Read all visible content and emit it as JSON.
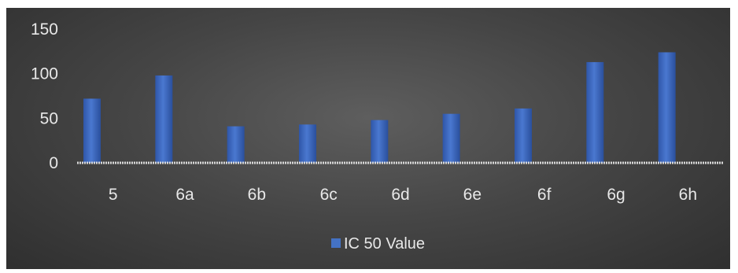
{
  "chart_data": {
    "type": "bar",
    "categories": [
      "5",
      "6a",
      "6b",
      "6c",
      "6d",
      "6e",
      "6f",
      "6g",
      "6h"
    ],
    "series": [
      {
        "name": "IC 50 Value",
        "values": [
          72,
          98,
          41,
          43,
          48,
          55,
          61,
          113,
          124
        ],
        "color": "#4472c4"
      }
    ],
    "y_ticks": [
      "0",
      "50",
      "100",
      "150"
    ],
    "ylim": [
      0,
      150
    ],
    "grid": false,
    "legend_position": "bottom",
    "background": "#3f3f3f"
  }
}
